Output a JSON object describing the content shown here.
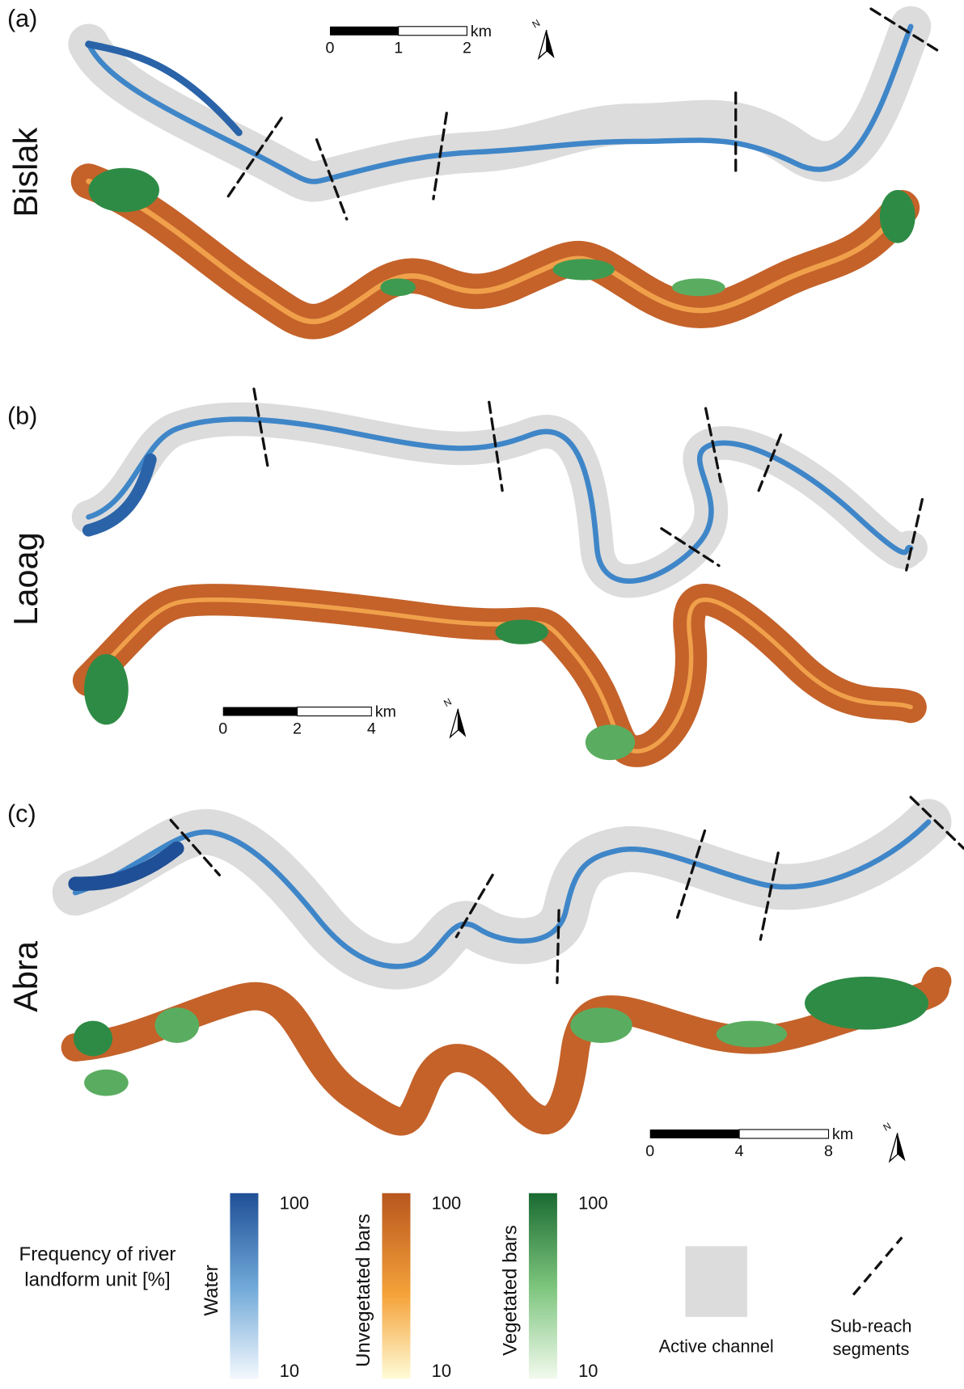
{
  "panels": [
    {
      "label": "(a)",
      "name": "Bislak",
      "scale": {
        "ticks": [
          0,
          1,
          2
        ],
        "unit": "km"
      },
      "north": "N"
    },
    {
      "label": "(b)",
      "name": "Laoag",
      "scale": {
        "ticks": [
          0,
          2,
          4
        ],
        "unit": "km"
      },
      "north": "N"
    },
    {
      "label": "(c)",
      "name": "Abra",
      "scale": {
        "ticks": [
          0,
          4,
          8
        ],
        "unit": "km"
      },
      "north": "N"
    }
  ],
  "legend": {
    "title": "Frequency of river landform unit [%]",
    "ramps": [
      {
        "name": "Water",
        "max": 100,
        "min": 10
      },
      {
        "name": "Unvegetated bars",
        "max": 100,
        "min": 10
      },
      {
        "name": "Vegetated bars",
        "max": 100,
        "min": 10
      }
    ],
    "active_channel": "Active channel",
    "sub_reach": "Sub-reach segments"
  }
}
